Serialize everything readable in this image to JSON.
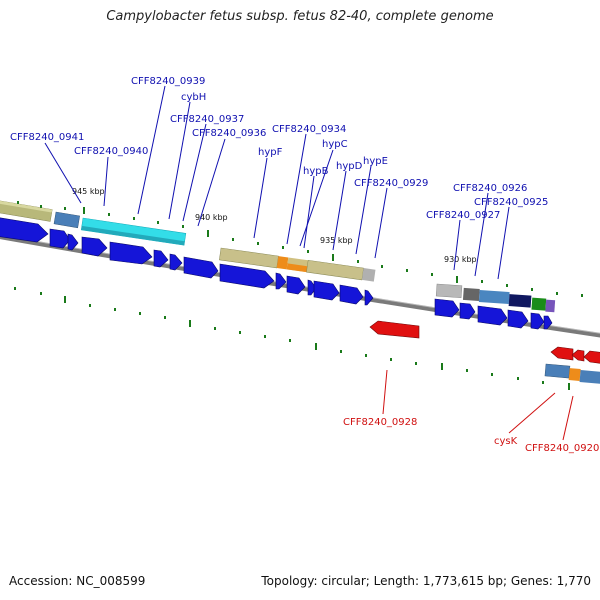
{
  "title": "Campylobacter fetus subsp. fetus 82-40, complete genome",
  "footer": {
    "accession": "Accession: NC_008599",
    "summary": "Topology: circular; Length: 1,773,615 bp; Genes: 1,770"
  },
  "colors": {
    "forward_gene": "#1515d8",
    "reverse_gene": "#e01010",
    "backbone": "#7a7a7a",
    "tick": "#1a7a1a",
    "forward_label": "#1010b0",
    "reverse_label": "#d01010"
  },
  "scale_labels": [
    "945 kbp",
    "940 kbp",
    "935 kbp",
    "930 kbp"
  ],
  "forward_labels": [
    "CFF8240_0939",
    "cybH",
    "CFF8240_0937",
    "CFF8240_0941",
    "CFF8240_0936",
    "CFF8240_0940",
    "CFF8240_0934",
    "hypC",
    "hypF",
    "hypB",
    "hypD",
    "hypE",
    "CFF8240_0929",
    "CFF8240_0926",
    "CFF8240_0925",
    "CFF8240_0927"
  ],
  "reverse_labels": [
    "CFF8240_0928",
    "cysK",
    "CFF8240_0920"
  ]
}
